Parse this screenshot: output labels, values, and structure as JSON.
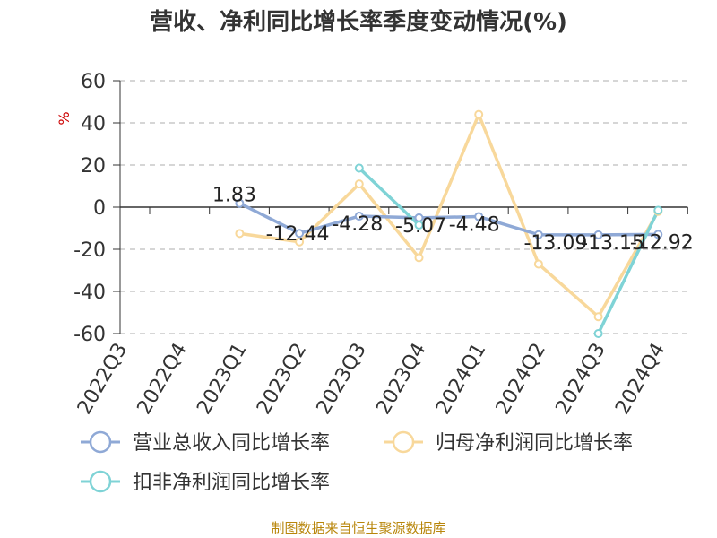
{
  "chart_data": {
    "type": "line",
    "title": "营收、净利同比增长率季度变动情况(%)",
    "ylabel": "%",
    "ylim": [
      -60,
      60
    ],
    "yticks": [
      60,
      40,
      20,
      0,
      -20,
      -40,
      -60
    ],
    "grid": true,
    "legend_position": "bottom",
    "categories": [
      "2022Q3",
      "2022Q4",
      "2023Q1",
      "2023Q2",
      "2023Q3",
      "2023Q4",
      "2024Q1",
      "2024Q2",
      "2024Q3",
      "2024Q4"
    ],
    "series": [
      {
        "name": "营业总收入同比增长率",
        "color": "#8fa9d6",
        "values": [
          null,
          null,
          1.83,
          -12.44,
          -4.28,
          -5.07,
          -4.48,
          -13.09,
          -13.15,
          -12.92
        ],
        "labels": [
          null,
          null,
          "1.83",
          "-12.44",
          "-4.28",
          "-5.07",
          "-4.48",
          "-13.09",
          "-13.15",
          "-12.92"
        ]
      },
      {
        "name": "归母净利润同比增长率",
        "color": "#f8d89b",
        "values": [
          null,
          null,
          -12.5,
          -16.5,
          11.0,
          -24.0,
          44.0,
          -27.0,
          -52.0,
          -2.0
        ]
      },
      {
        "name": "扣非净利润同比增长率",
        "color": "#7fd3d6",
        "values": [
          null,
          null,
          null,
          null,
          18.5,
          -8.5,
          null,
          null,
          -60.0,
          -1.5
        ]
      }
    ]
  },
  "source_note": "制图数据来自恒生聚源数据库"
}
